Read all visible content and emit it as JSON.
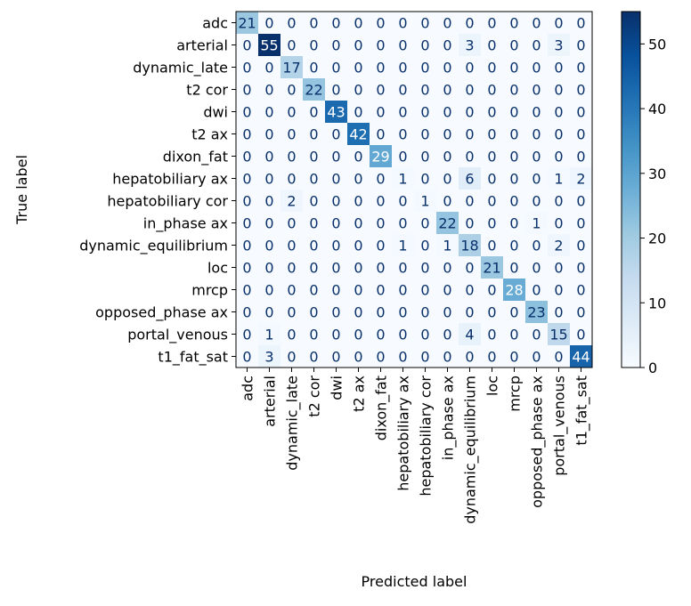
{
  "chart_data": {
    "type": "heatmap",
    "title": "",
    "xlabel": "Predicted label",
    "ylabel": "True label",
    "colormap": "Blues",
    "categories": [
      "adc",
      "arterial",
      "dynamic_late",
      "t2 cor",
      "dwi",
      "t2 ax",
      "dixon_fat",
      "hepatobiliary ax",
      "hepatobiliary cor",
      "in_phase ax",
      "dynamic_equilibrium",
      "loc",
      "mrcp",
      "opposed_phase ax",
      "portal_venous",
      "t1_fat_sat"
    ],
    "matrix": [
      [
        21,
        0,
        0,
        0,
        0,
        0,
        0,
        0,
        0,
        0,
        0,
        0,
        0,
        0,
        0,
        0
      ],
      [
        0,
        55,
        0,
        0,
        0,
        0,
        0,
        0,
        0,
        0,
        3,
        0,
        0,
        0,
        3,
        0
      ],
      [
        0,
        0,
        17,
        0,
        0,
        0,
        0,
        0,
        0,
        0,
        0,
        0,
        0,
        0,
        0,
        0
      ],
      [
        0,
        0,
        0,
        22,
        0,
        0,
        0,
        0,
        0,
        0,
        0,
        0,
        0,
        0,
        0,
        0
      ],
      [
        0,
        0,
        0,
        0,
        43,
        0,
        0,
        0,
        0,
        0,
        0,
        0,
        0,
        0,
        0,
        0
      ],
      [
        0,
        0,
        0,
        0,
        0,
        42,
        0,
        0,
        0,
        0,
        0,
        0,
        0,
        0,
        0,
        0
      ],
      [
        0,
        0,
        0,
        0,
        0,
        0,
        29,
        0,
        0,
        0,
        0,
        0,
        0,
        0,
        0,
        0
      ],
      [
        0,
        0,
        0,
        0,
        0,
        0,
        0,
        1,
        0,
        0,
        6,
        0,
        0,
        0,
        1,
        2
      ],
      [
        0,
        0,
        2,
        0,
        0,
        0,
        0,
        0,
        1,
        0,
        0,
        0,
        0,
        0,
        0,
        0
      ],
      [
        0,
        0,
        0,
        0,
        0,
        0,
        0,
        0,
        0,
        22,
        0,
        0,
        0,
        1,
        0,
        0
      ],
      [
        0,
        0,
        0,
        0,
        0,
        0,
        0,
        1,
        0,
        1,
        18,
        0,
        0,
        0,
        2,
        0
      ],
      [
        0,
        0,
        0,
        0,
        0,
        0,
        0,
        0,
        0,
        0,
        0,
        21,
        0,
        0,
        0,
        0
      ],
      [
        0,
        0,
        0,
        0,
        0,
        0,
        0,
        0,
        0,
        0,
        0,
        0,
        28,
        0,
        0,
        0
      ],
      [
        0,
        0,
        0,
        0,
        0,
        0,
        0,
        0,
        0,
        0,
        0,
        0,
        0,
        23,
        0,
        0
      ],
      [
        0,
        1,
        0,
        0,
        0,
        0,
        0,
        0,
        0,
        0,
        4,
        0,
        0,
        0,
        15,
        0
      ],
      [
        0,
        3,
        0,
        0,
        0,
        0,
        0,
        0,
        0,
        0,
        0,
        0,
        0,
        0,
        0,
        44
      ]
    ],
    "vmin": 0,
    "vmax": 55,
    "colorbar_ticks": [
      0,
      10,
      20,
      30,
      40,
      50
    ],
    "grid": false
  }
}
